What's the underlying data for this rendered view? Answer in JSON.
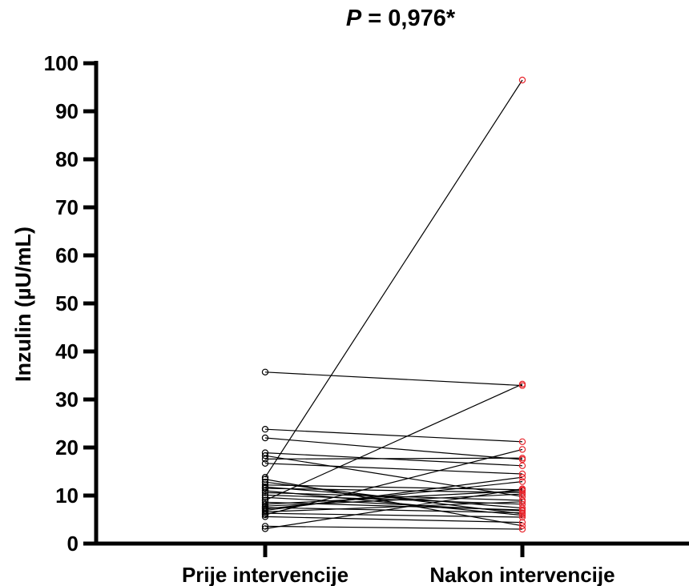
{
  "chart_data": {
    "type": "scatter",
    "subtype": "paired before-after",
    "title_prefix": "P",
    "title_rest": " = 0,976*",
    "ylabel": "Inzulin (µU/mL)",
    "ylim": [
      0,
      100
    ],
    "yticks": [
      0,
      10,
      20,
      30,
      40,
      50,
      60,
      70,
      80,
      90,
      100
    ],
    "categories": [
      "Prije intervencije",
      "Nakon intervencije"
    ],
    "colors": {
      "before": "#000000",
      "after": "#e8262d",
      "lines": "#000000"
    },
    "pairs": [
      [
        35.7,
        32.9
      ],
      [
        23.8,
        21.2
      ],
      [
        22.0,
        17.5
      ],
      [
        18.9,
        16.2
      ],
      [
        18.3,
        9.8
      ],
      [
        17.6,
        17.8
      ],
      [
        16.7,
        14.5
      ],
      [
        13.8,
        96.5
      ],
      [
        13.4,
        3.7
      ],
      [
        12.8,
        6.2
      ],
      [
        12.2,
        11.2
      ],
      [
        11.8,
        7.4
      ],
      [
        11.5,
        10.6
      ],
      [
        11.0,
        5.9
      ],
      [
        10.6,
        9.0
      ],
      [
        10.1,
        8.2
      ],
      [
        9.6,
        6.8
      ],
      [
        9.0,
        33.2
      ],
      [
        8.6,
        7.0
      ],
      [
        8.2,
        11.0
      ],
      [
        7.8,
        10.3
      ],
      [
        7.5,
        6.4
      ],
      [
        7.2,
        12.9
      ],
      [
        6.9,
        13.8
      ],
      [
        6.6,
        8.7
      ],
      [
        6.3,
        5.5
      ],
      [
        6.0,
        19.6
      ],
      [
        5.6,
        4.4
      ],
      [
        3.6,
        3.0
      ],
      [
        3.1,
        11.4
      ]
    ]
  }
}
